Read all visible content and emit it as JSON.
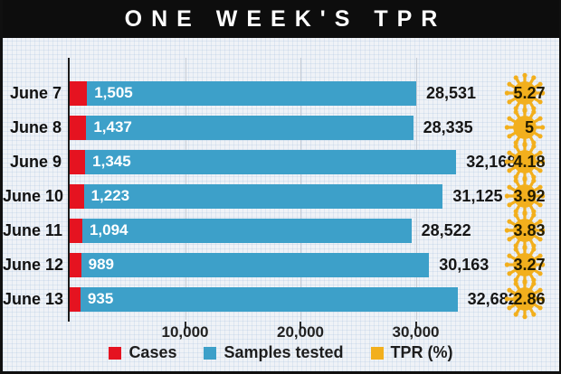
{
  "header": {
    "title": "ONE WEEK'S TPR"
  },
  "chart_data": {
    "type": "bar",
    "orientation": "horizontal",
    "stacked": true,
    "title": "ONE WEEK'S TPR",
    "categories": [
      "June 7",
      "June 8",
      "June 9",
      "June 10",
      "June 11",
      "June 12",
      "June 13"
    ],
    "series": [
      {
        "name": "Cases",
        "color": "#E51320",
        "values": [
          1505,
          1437,
          1345,
          1223,
          1094,
          989,
          935
        ],
        "value_labels": [
          "1,505",
          "1,437",
          "1,345",
          "1,223",
          "1,094",
          "989",
          "935"
        ],
        "label_position": "inside-bar-start",
        "label_color": "#ffffff"
      },
      {
        "name": "Samples tested",
        "color": "#3DA0C9",
        "values": [
          28531,
          28335,
          32168,
          31125,
          28522,
          30163,
          32682
        ],
        "value_labels": [
          "28,531",
          "28,335",
          "32,168",
          "31,125",
          "28,522",
          "30,163",
          "32,682"
        ],
        "label_position": "outside-end",
        "label_color": "#161616"
      },
      {
        "name": "TPR (%)",
        "color": "#F2AF1D",
        "values": [
          5.27,
          5,
          4.18,
          3.92,
          3.83,
          3.27,
          2.86
        ],
        "value_labels": [
          "5.27",
          "5",
          "4.18",
          "3.92",
          "3.83",
          "3.27",
          "2.86"
        ],
        "marker": "coronavirus-icon",
        "label_color": "#241c00"
      }
    ],
    "x_axis": {
      "tick_values": [
        10000,
        20000,
        30000
      ],
      "tick_labels": [
        "10,000",
        "20,000",
        "30,000"
      ],
      "range": [
        0,
        42000
      ],
      "grid": true
    },
    "legend": {
      "position": "bottom",
      "items": [
        {
          "label": "Cases",
          "color": "#E51320"
        },
        {
          "label": "Samples tested",
          "color": "#3DA0C9"
        },
        {
          "label": "TPR (%)",
          "color": "#F2AF1D"
        }
      ]
    }
  },
  "colors": {
    "header_bg": "#0d0d0d",
    "header_text": "#ffffff",
    "background": "#eff2f7",
    "axis": "#1a1a1a",
    "gridline": "#c7cdd6",
    "tick_label": "#212121"
  }
}
